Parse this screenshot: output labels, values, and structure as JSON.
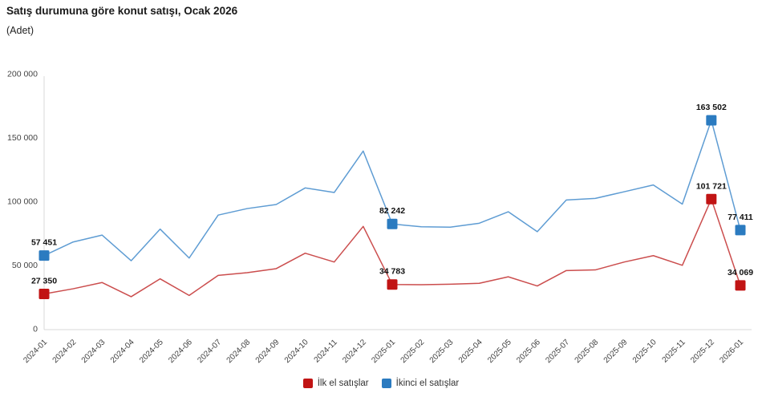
{
  "chart_data": {
    "type": "line",
    "title": "Satış durumuna göre konut satışı, Ocak 2026",
    "subtitle": "(Adet)",
    "xlabel": "",
    "ylabel": "",
    "ylim": [
      0,
      200000
    ],
    "grid": false,
    "legend_position": "bottom",
    "axis_color": "#d8d8d8",
    "yticks": [
      {
        "value": 0,
        "label": "0"
      },
      {
        "value": 50000,
        "label": "50 000"
      },
      {
        "value": 100000,
        "label": "100 000"
      },
      {
        "value": 150000,
        "label": "150 000"
      },
      {
        "value": 200000,
        "label": "200 000"
      }
    ],
    "categories": [
      "2024-01",
      "2024-02",
      "2024-03",
      "2024-04",
      "2024-05",
      "2024-06",
      "2024-07",
      "2024-08",
      "2024-09",
      "2024-10",
      "2024-11",
      "2024-12",
      "2025-01",
      "2025-02",
      "2025-03",
      "2025-04",
      "2025-05",
      "2025-06",
      "2025-07",
      "2025-08",
      "2025-09",
      "2025-10",
      "2025-11",
      "2025-12",
      "2026-01"
    ],
    "series": [
      {
        "id": "ilk-el-satislar",
        "name": "İlk el satışlar",
        "line_color": "#CB4D4D",
        "marker_color": "#C11414",
        "values": [
          27350,
          31400,
          36300,
          25200,
          39200,
          26200,
          41900,
          44000,
          47200,
          59300,
          52400,
          80300,
          34783,
          34600,
          35000,
          35700,
          40800,
          33600,
          45700,
          46200,
          52400,
          57400,
          49800,
          101721,
          34069
        ],
        "point_labels": {
          "0": "27 350",
          "12": "34 783",
          "23": "101 721",
          "24": "34 069"
        }
      },
      {
        "id": "ikinci-el-satislar",
        "name": "İkinci el satışlar",
        "line_color": "#5E9CD3",
        "marker_color": "#2B7BC0",
        "values": [
          57451,
          68100,
          73500,
          53400,
          78200,
          55500,
          89200,
          94300,
          97500,
          110500,
          106900,
          139400,
          82242,
          80000,
          79700,
          82800,
          91800,
          76200,
          101000,
          102300,
          107500,
          112800,
          97800,
          163502,
          77411
        ],
        "point_labels": {
          "0": "57 451",
          "12": "82 242",
          "23": "163 502",
          "24": "77 411"
        }
      }
    ]
  }
}
